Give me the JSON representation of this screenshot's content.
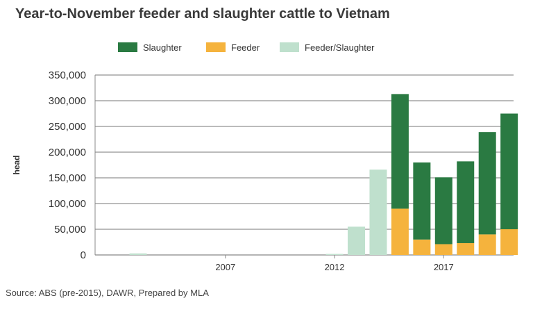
{
  "title": "Year-to-November feeder and slaughter cattle to Vietnam",
  "source": "Source: ABS (pre-2015), DAWR, Prepared by MLA",
  "colors": {
    "slaughter": "#2a7a42",
    "feeder": "#f5b33d",
    "feeder_slaughter": "#bfe0cd",
    "axis": "#888888",
    "grid": "#777777"
  },
  "chart_data": {
    "type": "bar",
    "stacked": true,
    "title": "Year-to-November feeder and slaughter cattle to Vietnam",
    "ylabel": "head",
    "xlabel": "",
    "ylim": [
      0,
      350000
    ],
    "yticks": [
      0,
      50000,
      100000,
      150000,
      200000,
      250000,
      300000,
      350000
    ],
    "ytick_labels": [
      "0",
      "50,000",
      "100,000",
      "150,000",
      "200,000",
      "250,000",
      "300,000",
      "350,000"
    ],
    "xtick_labels": [
      "2007",
      "2012",
      "2017"
    ],
    "xtick_years": [
      2007,
      2012,
      2017
    ],
    "grid": true,
    "legend_position": "top",
    "categories": [
      2003,
      2004,
      2005,
      2006,
      2007,
      2008,
      2009,
      2010,
      2011,
      2012,
      2013,
      2014,
      2015,
      2016,
      2017,
      2018,
      2019,
      2020
    ],
    "series": [
      {
        "name": "Slaughter",
        "key": "slaughter",
        "values": [
          0,
          0,
          0,
          0,
          0,
          0,
          0,
          0,
          0,
          0,
          0,
          0,
          223000,
          150000,
          130000,
          159000,
          199000,
          225000
        ]
      },
      {
        "name": "Feeder",
        "key": "feeder",
        "values": [
          0,
          0,
          0,
          0,
          0,
          0,
          0,
          0,
          0,
          0,
          0,
          0,
          90000,
          30000,
          21000,
          23000,
          40000,
          50000
        ]
      },
      {
        "name": "Feeder/Slaughter",
        "key": "feeder_slaughter",
        "values": [
          3000,
          0,
          0,
          0,
          0,
          0,
          0,
          0,
          0,
          2000,
          55000,
          166000,
          0,
          0,
          0,
          0,
          0,
          0
        ]
      }
    ]
  }
}
